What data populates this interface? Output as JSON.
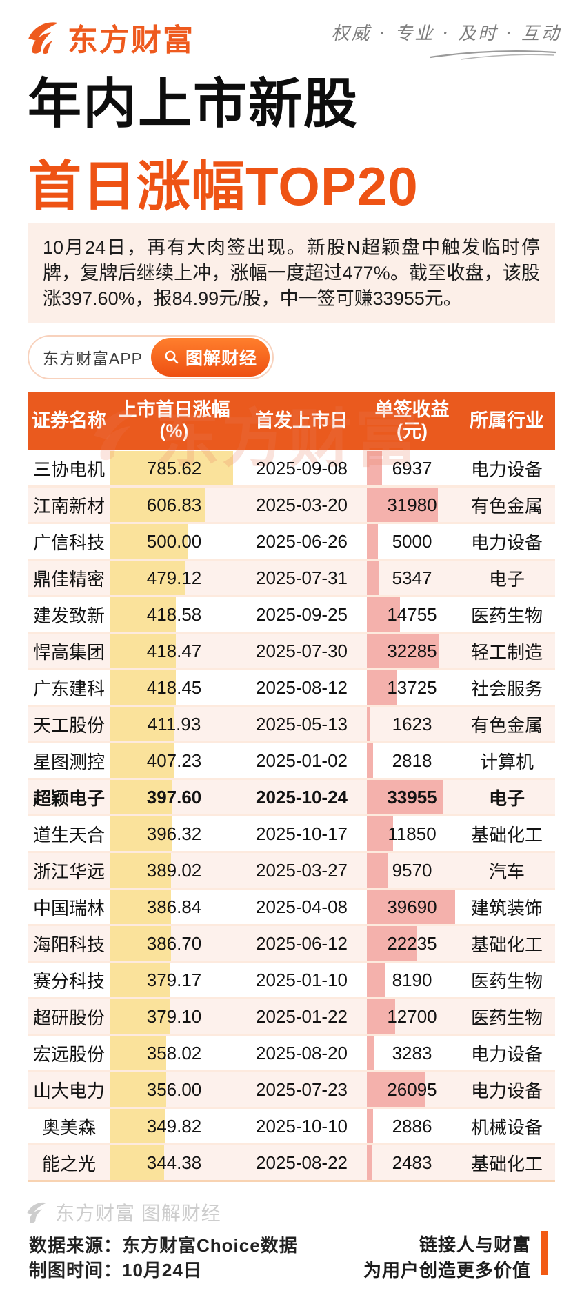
{
  "brand": {
    "logo_text": "东方财富",
    "tagline": "权威 · 专业 · 及时 · 互动"
  },
  "titles": {
    "line1": "年内上市新股",
    "line2": "首日涨幅TOP20"
  },
  "intro": {
    "text": "10月24日，再有大肉签出现。新股N超颖盘中触发临时停牌，复牌后继续上冲，涨幅一度超过477%。截至收盘，该股涨397.60%，报84.99元/股，中一签可赚33955元。"
  },
  "promo": {
    "app_label": "东方财富APP",
    "button_label": "图解财经"
  },
  "table": {
    "columns": [
      {
        "label": "证券名称",
        "sub": ""
      },
      {
        "label": "上市首日涨幅",
        "sub": "(%)"
      },
      {
        "label": "首发上市日",
        "sub": ""
      },
      {
        "label": "单签收益",
        "sub": "(元)"
      },
      {
        "label": "所属行业",
        "sub": ""
      }
    ],
    "rows": [
      {
        "name": "三协电机",
        "gain": "785.62",
        "date": "2025-09-08",
        "income": "6937",
        "industry": "电力设备",
        "highlight": false
      },
      {
        "name": "江南新材",
        "gain": "606.83",
        "date": "2025-03-20",
        "income": "31980",
        "industry": "有色金属",
        "highlight": false
      },
      {
        "name": "广信科技",
        "gain": "500.00",
        "date": "2025-06-26",
        "income": "5000",
        "industry": "电力设备",
        "highlight": false
      },
      {
        "name": "鼎佳精密",
        "gain": "479.12",
        "date": "2025-07-31",
        "income": "5347",
        "industry": "电子",
        "highlight": false
      },
      {
        "name": "建发致新",
        "gain": "418.58",
        "date": "2025-09-25",
        "income": "14755",
        "industry": "医药生物",
        "highlight": false
      },
      {
        "name": "悍高集团",
        "gain": "418.47",
        "date": "2025-07-30",
        "income": "32285",
        "industry": "轻工制造",
        "highlight": false
      },
      {
        "name": "广东建科",
        "gain": "418.45",
        "date": "2025-08-12",
        "income": "13725",
        "industry": "社会服务",
        "highlight": false
      },
      {
        "name": "天工股份",
        "gain": "411.93",
        "date": "2025-05-13",
        "income": "1623",
        "industry": "有色金属",
        "highlight": false
      },
      {
        "name": "星图测控",
        "gain": "407.23",
        "date": "2025-01-02",
        "income": "2818",
        "industry": "计算机",
        "highlight": false
      },
      {
        "name": "超颖电子",
        "gain": "397.60",
        "date": "2025-10-24",
        "income": "33955",
        "industry": "电子",
        "highlight": true
      },
      {
        "name": "道生天合",
        "gain": "396.32",
        "date": "2025-10-17",
        "income": "11850",
        "industry": "基础化工",
        "highlight": false
      },
      {
        "name": "浙江华远",
        "gain": "389.02",
        "date": "2025-03-27",
        "income": "9570",
        "industry": "汽车",
        "highlight": false
      },
      {
        "name": "中国瑞林",
        "gain": "386.84",
        "date": "2025-04-08",
        "income": "39690",
        "industry": "建筑装饰",
        "highlight": false
      },
      {
        "name": "海阳科技",
        "gain": "386.70",
        "date": "2025-06-12",
        "income": "22235",
        "industry": "基础化工",
        "highlight": false
      },
      {
        "name": "赛分科技",
        "gain": "379.17",
        "date": "2025-01-10",
        "income": "8190",
        "industry": "医药生物",
        "highlight": false
      },
      {
        "name": "超研股份",
        "gain": "379.10",
        "date": "2025-01-22",
        "income": "12700",
        "industry": "医药生物",
        "highlight": false
      },
      {
        "name": "宏远股份",
        "gain": "358.02",
        "date": "2025-08-20",
        "income": "3283",
        "industry": "电力设备",
        "highlight": false
      },
      {
        "name": "山大电力",
        "gain": "356.00",
        "date": "2025-07-23",
        "income": "26095",
        "industry": "电力设备",
        "highlight": false
      },
      {
        "name": "奥美森",
        "gain": "349.82",
        "date": "2025-10-10",
        "income": "2886",
        "industry": "机械设备",
        "highlight": false
      },
      {
        "name": "能之光",
        "gain": "344.38",
        "date": "2025-08-22",
        "income": "2483",
        "industry": "基础化工",
        "highlight": false
      }
    ],
    "watermark_text": "东方财富"
  },
  "footer": {
    "watermark_text": "东方财富 图解财经",
    "source_label": "数据来源：",
    "source_value": "东方财富Choice数据",
    "time_label": "制图时间：",
    "time_value": "10月24日",
    "slogan_line1": "链接人与财富",
    "slogan_line2": "为用户创造更多价值"
  },
  "colors": {
    "brand_orange": "#ee5a1e",
    "table_header_bg": "#ea5a1e",
    "gain_bar": "#fae29b",
    "income_bar": "#f4b1ac",
    "row_alt_bg": "#fdf1ec",
    "intro_bg": "#fcefe8",
    "slogan_bar": "#f25a14",
    "watermark_gray": "#cdcdcd"
  },
  "chart_data": {
    "type": "table",
    "title": "年内上市新股首日涨幅TOP20",
    "subtitle_note": "10月24日，再有大肉签出现。新股N超颖盘中触发临时停牌，复牌后继续上冲，涨幅一度超过477%。截至收盘，该股涨397.60%，报84.99元/股，中一签可赚33955元。",
    "columns": [
      "证券名称",
      "上市首日涨幅(%)",
      "首发上市日",
      "单签收益(元)",
      "所属行业"
    ],
    "bar_encoded_columns": [
      "上市首日涨幅(%)",
      "单签收益(元)"
    ],
    "rows": [
      [
        "三协电机",
        785.62,
        "2025-09-08",
        6937,
        "电力设备"
      ],
      [
        "江南新材",
        606.83,
        "2025-03-20",
        31980,
        "有色金属"
      ],
      [
        "广信科技",
        500.0,
        "2025-06-26",
        5000,
        "电力设备"
      ],
      [
        "鼎佳精密",
        479.12,
        "2025-07-31",
        5347,
        "电子"
      ],
      [
        "建发致新",
        418.58,
        "2025-09-25",
        14755,
        "医药生物"
      ],
      [
        "悍高集团",
        418.47,
        "2025-07-30",
        32285,
        "轻工制造"
      ],
      [
        "广东建科",
        418.45,
        "2025-08-12",
        13725,
        "社会服务"
      ],
      [
        "天工股份",
        411.93,
        "2025-05-13",
        1623,
        "有色金属"
      ],
      [
        "星图测控",
        407.23,
        "2025-01-02",
        2818,
        "计算机"
      ],
      [
        "超颖电子",
        397.6,
        "2025-10-24",
        33955,
        "电子"
      ],
      [
        "道生天合",
        396.32,
        "2025-10-17",
        11850,
        "基础化工"
      ],
      [
        "浙江华远",
        389.02,
        "2025-03-27",
        9570,
        "汽车"
      ],
      [
        "中国瑞林",
        386.84,
        "2025-04-08",
        39690,
        "建筑装饰"
      ],
      [
        "海阳科技",
        386.7,
        "2025-06-12",
        22235,
        "基础化工"
      ],
      [
        "赛分科技",
        379.17,
        "2025-01-10",
        8190,
        "医药生物"
      ],
      [
        "超研股份",
        379.1,
        "2025-01-22",
        12700,
        "医药生物"
      ],
      [
        "宏远股份",
        358.02,
        "2025-08-20",
        3283,
        "电力设备"
      ],
      [
        "山大电力",
        356.0,
        "2025-07-23",
        26095,
        "电力设备"
      ],
      [
        "奥美森",
        349.82,
        "2025-10-10",
        2886,
        "机械设备"
      ],
      [
        "能之光",
        344.38,
        "2025-08-22",
        2483,
        "基础化工"
      ]
    ],
    "highlighted_row": "超颖电子"
  }
}
